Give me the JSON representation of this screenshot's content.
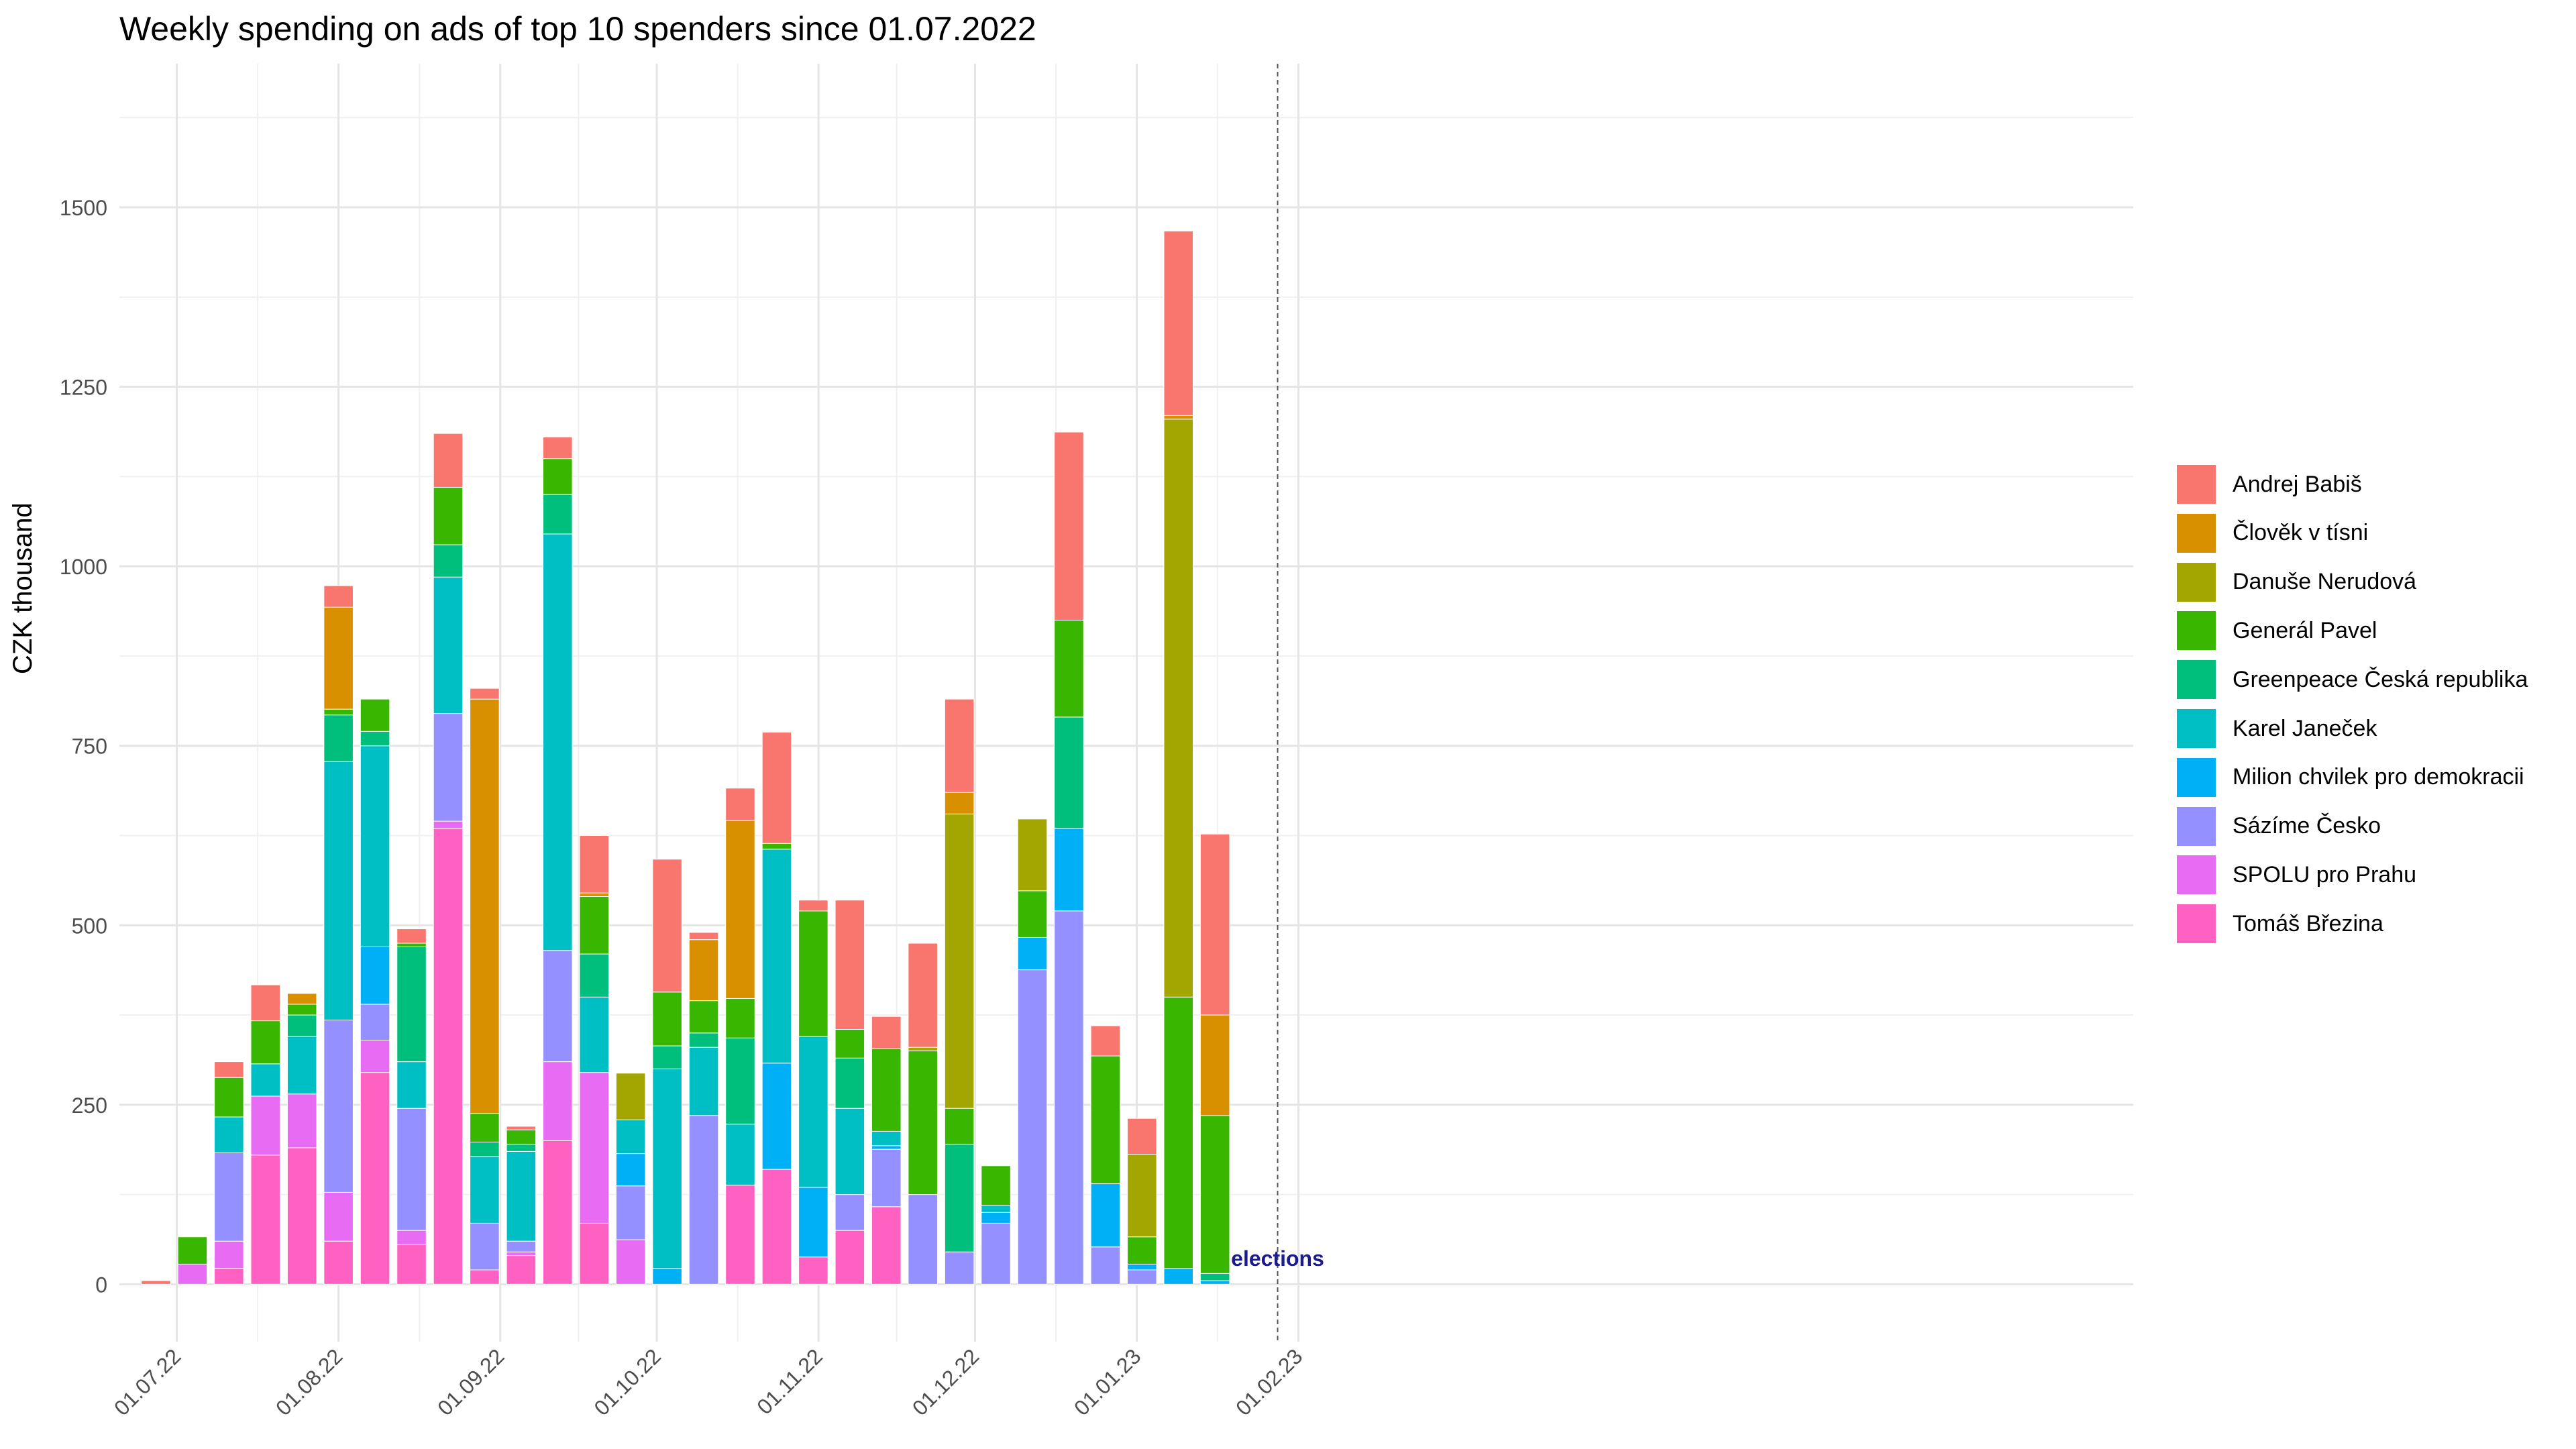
{
  "chart_data": {
    "type": "bar",
    "stacked": true,
    "title": "Weekly spending on ads of top 10 spenders since 01.07.2022",
    "xlabel": "",
    "ylabel": "CZK thousand",
    "ylim": [
      -80,
      1700
    ],
    "y_ticks": [
      0,
      250,
      500,
      750,
      1000,
      1250,
      1500
    ],
    "x_range_days": [
      -11,
      375
    ],
    "x_ticks": [
      {
        "label": "01.07.22",
        "day": 0
      },
      {
        "label": "01.08.22",
        "day": 31
      },
      {
        "label": "01.09.22",
        "day": 62
      },
      {
        "label": "01.10.22",
        "day": 92
      },
      {
        "label": "01.11.22",
        "day": 123
      },
      {
        "label": "01.12.22",
        "day": 153
      },
      {
        "label": "01.01.23",
        "day": 184
      },
      {
        "label": "01.02.23",
        "day": 215
      }
    ],
    "grid": true,
    "legend_position": "right",
    "series": [
      {
        "name": "Tomáš Březina",
        "color": "#FF61C3"
      },
      {
        "name": "SPOLU pro Prahu",
        "color": "#E76BF3"
      },
      {
        "name": "Sázíme Česko",
        "color": "#9590FF"
      },
      {
        "name": "Milion chvilek pro demokracii",
        "color": "#00B0F6"
      },
      {
        "name": "Karel Janeček",
        "color": "#00BFC4"
      },
      {
        "name": "Greenpeace Česká republika",
        "color": "#00BF7D"
      },
      {
        "name": "Generál Pavel",
        "color": "#39B600"
      },
      {
        "name": "Danuše Nerudová",
        "color": "#A3A500"
      },
      {
        "name": "Člověk v tísni",
        "color": "#D89000"
      },
      {
        "name": "Andrej Babiš",
        "color": "#F8766D"
      }
    ],
    "legend_order": [
      "Andrej Babiš",
      "Člověk v tísni",
      "Danuše Nerudová",
      "Generál Pavel",
      "Greenpeace Česká republika",
      "Karel Janeček",
      "Milion chvilek pro demokracii",
      "Sázíme Česko",
      "SPOLU pro Prahu",
      "Tomáš Březina"
    ],
    "bars": [
      {
        "day": -4,
        "values": [
          0,
          0,
          0,
          0,
          0,
          0,
          0,
          0,
          0,
          5
        ]
      },
      {
        "day": 3,
        "values": [
          0,
          28,
          0,
          0,
          0,
          0,
          38,
          0,
          0,
          0
        ]
      },
      {
        "day": 10,
        "values": [
          22,
          38,
          123,
          0,
          50,
          0,
          55,
          0,
          0,
          22
        ]
      },
      {
        "day": 17,
        "values": [
          180,
          82,
          0,
          0,
          45,
          0,
          60,
          0,
          0,
          50
        ]
      },
      {
        "day": 24,
        "values": [
          190,
          75,
          0,
          0,
          80,
          30,
          15,
          0,
          15,
          0
        ]
      },
      {
        "day": 31,
        "values": [
          60,
          68,
          240,
          0,
          360,
          65,
          8,
          0,
          142,
          30
        ]
      },
      {
        "day": 38,
        "values": [
          295,
          45,
          50,
          80,
          280,
          20,
          45,
          0,
          0,
          0
        ]
      },
      {
        "day": 45,
        "values": [
          55,
          20,
          170,
          0,
          65,
          160,
          5,
          0,
          0,
          20
        ]
      },
      {
        "day": 52,
        "values": [
          635,
          10,
          150,
          0,
          190,
          45,
          80,
          0,
          0,
          75
        ]
      },
      {
        "day": 59,
        "values": [
          20,
          0,
          65,
          0,
          93,
          20,
          40,
          0,
          577,
          15
        ]
      },
      {
        "day": 66,
        "values": [
          40,
          5,
          15,
          0,
          125,
          10,
          20,
          0,
          0,
          5
        ]
      },
      {
        "day": 73,
        "values": [
          200,
          110,
          155,
          0,
          580,
          55,
          50,
          0,
          0,
          30
        ]
      },
      {
        "day": 80,
        "values": [
          85,
          210,
          0,
          0,
          105,
          60,
          80,
          0,
          5,
          80
        ]
      },
      {
        "day": 87,
        "values": [
          0,
          62,
          75,
          45,
          47,
          0,
          0,
          65,
          0,
          0
        ]
      },
      {
        "day": 94,
        "values": [
          0,
          0,
          0,
          22,
          278,
          32,
          75,
          0,
          0,
          185
        ]
      },
      {
        "day": 101,
        "values": [
          0,
          0,
          235,
          0,
          95,
          20,
          45,
          0,
          85,
          10
        ]
      },
      {
        "day": 108,
        "values": [
          138,
          0,
          0,
          0,
          85,
          120,
          55,
          0,
          248,
          45
        ]
      },
      {
        "day": 115,
        "values": [
          160,
          0,
          0,
          148,
          298,
          0,
          8,
          0,
          0,
          155
        ]
      },
      {
        "day": 122,
        "values": [
          38,
          0,
          0,
          97,
          210,
          0,
          175,
          0,
          0,
          15
        ]
      },
      {
        "day": 129,
        "values": [
          75,
          0,
          50,
          0,
          120,
          70,
          40,
          0,
          0,
          180
        ]
      },
      {
        "day": 136,
        "values": [
          108,
          0,
          80,
          5,
          20,
          0,
          115,
          0,
          0,
          45
        ]
      },
      {
        "day": 143,
        "values": [
          0,
          0,
          125,
          0,
          0,
          0,
          200,
          5,
          0,
          145
        ]
      },
      {
        "day": 150,
        "values": [
          0,
          0,
          45,
          0,
          0,
          150,
          50,
          410,
          30,
          130
        ]
      },
      {
        "day": 157,
        "values": [
          0,
          0,
          85,
          15,
          10,
          0,
          55,
          0,
          0,
          0
        ]
      },
      {
        "day": 164,
        "values": [
          0,
          0,
          438,
          45,
          0,
          0,
          65,
          100,
          0,
          0
        ]
      },
      {
        "day": 171,
        "values": [
          0,
          0,
          520,
          115,
          0,
          155,
          135,
          0,
          0,
          262
        ]
      },
      {
        "day": 178,
        "values": [
          0,
          0,
          52,
          88,
          0,
          0,
          178,
          0,
          0,
          42
        ]
      },
      {
        "day": 185,
        "values": [
          0,
          0,
          20,
          8,
          0,
          0,
          38,
          115,
          0,
          50
        ]
      },
      {
        "day": 192,
        "values": [
          0,
          0,
          0,
          22,
          0,
          0,
          378,
          805,
          5,
          257
        ]
      },
      {
        "day": 199,
        "values": [
          0,
          0,
          0,
          5,
          0,
          10,
          220,
          0,
          140,
          252
        ]
      }
    ],
    "annotations": [
      {
        "text": "elections",
        "day": 211,
        "y": 35,
        "line": "dashed"
      }
    ]
  }
}
